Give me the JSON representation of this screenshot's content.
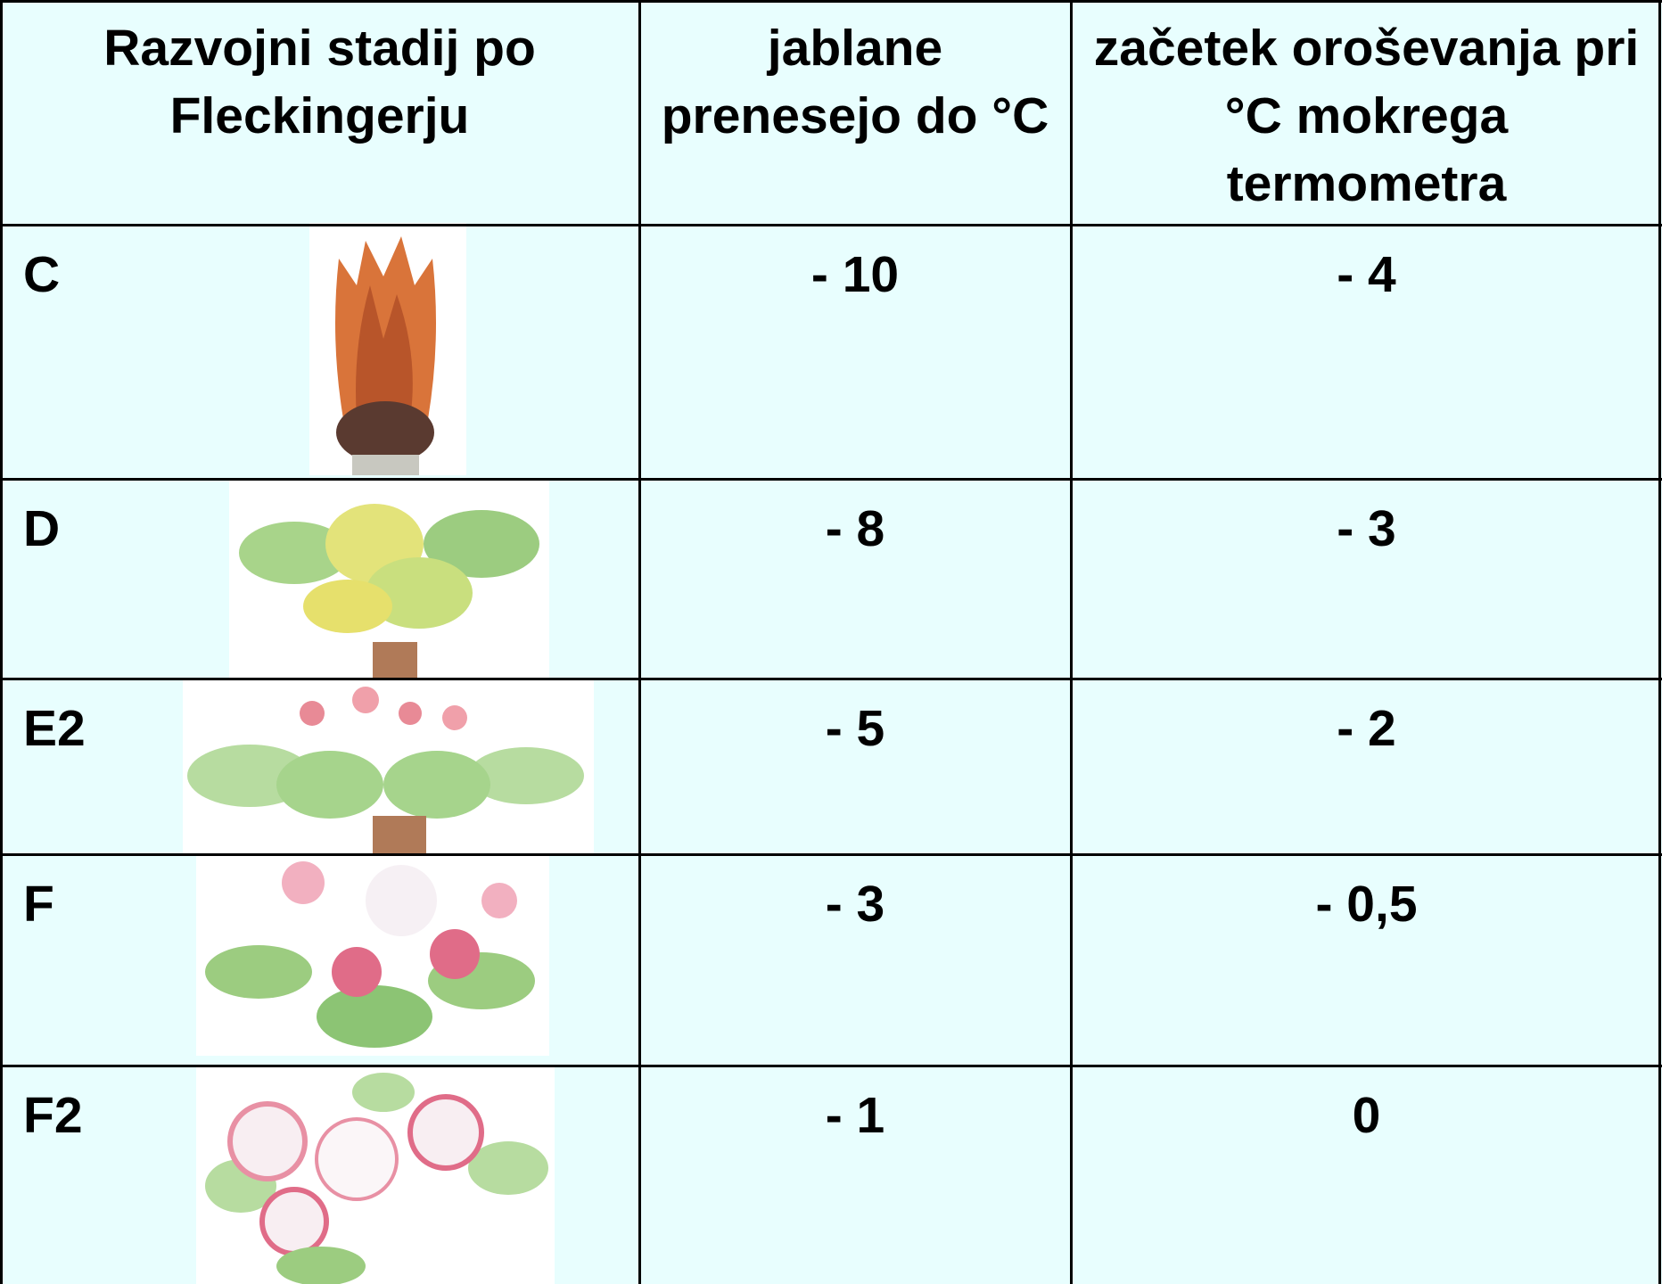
{
  "header": [
    "Razvojni stadij po Fleckingerju",
    "jablane prenesejo do °C",
    "začetek oroševanja pri °C mokrega termometra"
  ],
  "rows": [
    [
      "C",
      "- 10",
      "- 4"
    ],
    [
      "D",
      "- 8",
      "- 3"
    ],
    [
      "E2",
      "- 5",
      "- 2"
    ],
    [
      "F",
      "- 3",
      "- 0,5"
    ],
    [
      "F2",
      "- 1",
      "0"
    ]
  ]
}
